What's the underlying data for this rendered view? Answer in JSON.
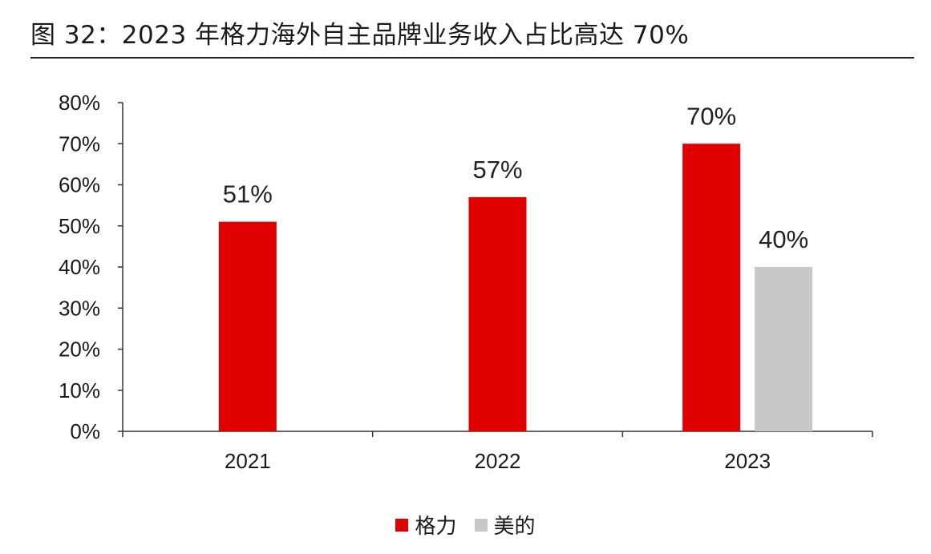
{
  "figure": {
    "title": "图 32：2023 年格力海外自主品牌业务收入占比高达 70%"
  },
  "chart_data": {
    "type": "bar",
    "title": "图 32：2023 年格力海外自主品牌业务收入占比高达 70%",
    "categories": [
      "2021",
      "2022",
      "2023"
    ],
    "series": [
      {
        "name": "格力",
        "color": "#e00000",
        "values": [
          51,
          57,
          70
        ],
        "labels": [
          "51%",
          "57%",
          "70%"
        ]
      },
      {
        "name": "美的",
        "color": "#c8c8c8",
        "values": [
          null,
          null,
          40
        ],
        "labels": [
          null,
          null,
          "40%"
        ]
      }
    ],
    "ylim": [
      0,
      80
    ],
    "yticks": [
      "0%",
      "10%",
      "20%",
      "30%",
      "40%",
      "50%",
      "60%",
      "70%",
      "80%"
    ],
    "xlabel": "",
    "ylabel": "",
    "grid": false,
    "legend_position": "bottom"
  }
}
